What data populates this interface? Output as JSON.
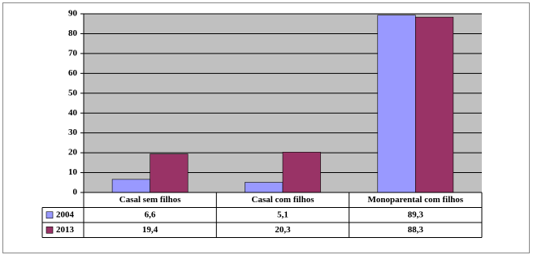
{
  "chart_data": {
    "type": "bar",
    "categories": [
      "Casal sem filhos",
      "Casal com filhos",
      "Monoparental com filhos"
    ],
    "series": [
      {
        "name": "2004",
        "color": "#9999ff",
        "values": [
          6.6,
          5.1,
          89.3
        ],
        "value_labels": [
          "6,6",
          "5,1",
          "89,3"
        ]
      },
      {
        "name": "2013",
        "color": "#993366",
        "values": [
          19.4,
          20.3,
          88.3
        ],
        "value_labels": [
          "19,4",
          "20,3",
          "88,3"
        ]
      }
    ],
    "ylim": [
      0,
      90
    ],
    "yticks": [
      0,
      10,
      20,
      30,
      40,
      50,
      60,
      70,
      80,
      90
    ],
    "grid": true,
    "data_table": true
  }
}
